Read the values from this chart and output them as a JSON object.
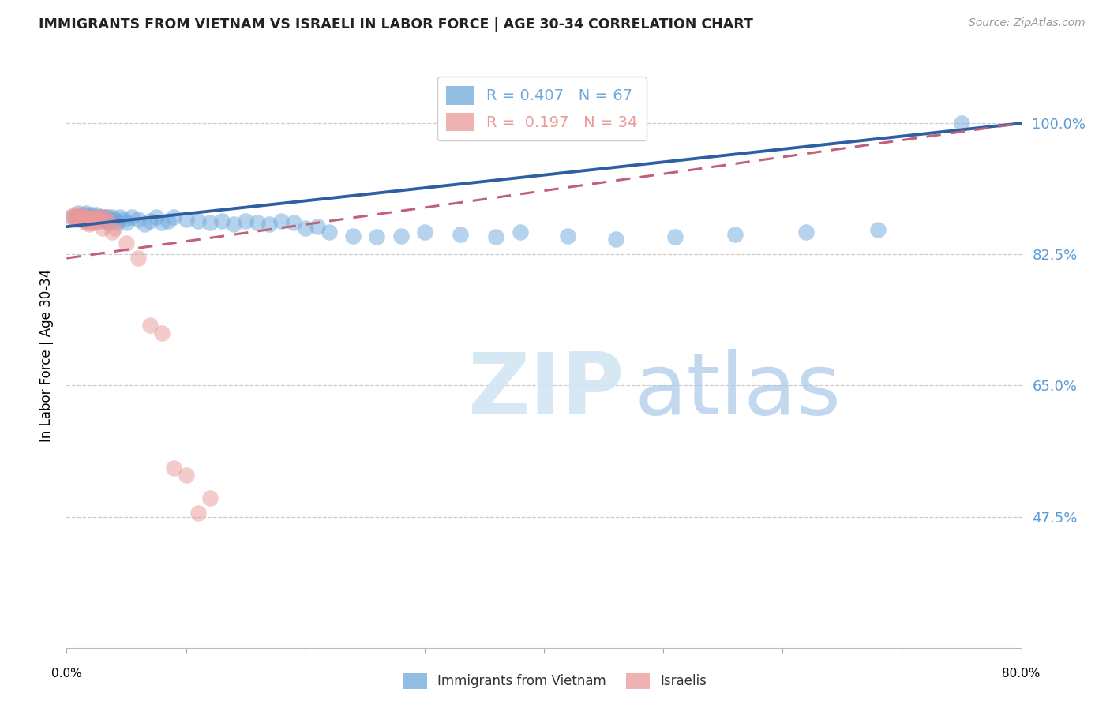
{
  "title": "IMMIGRANTS FROM VIETNAM VS ISRAELI IN LABOR FORCE | AGE 30-34 CORRELATION CHART",
  "source": "Source: ZipAtlas.com",
  "ylabel": "In Labor Force | Age 30-34",
  "ytick_labels": [
    "100.0%",
    "82.5%",
    "65.0%",
    "47.5%"
  ],
  "ytick_values": [
    1.0,
    0.825,
    0.65,
    0.475
  ],
  "xlim": [
    0.0,
    0.8
  ],
  "ylim": [
    0.3,
    1.08
  ],
  "legend_entries": [
    {
      "label": "R = 0.407   N = 67",
      "color": "#6fa8dc"
    },
    {
      "label": "R =  0.197   N = 34",
      "color": "#ea9999"
    }
  ],
  "blue_scatter_x": [
    0.005,
    0.008,
    0.01,
    0.012,
    0.013,
    0.015,
    0.016,
    0.017,
    0.018,
    0.019,
    0.02,
    0.021,
    0.022,
    0.023,
    0.024,
    0.025,
    0.026,
    0.027,
    0.028,
    0.03,
    0.031,
    0.032,
    0.033,
    0.034,
    0.035,
    0.036,
    0.038,
    0.04,
    0.042,
    0.045,
    0.048,
    0.05,
    0.055,
    0.06,
    0.065,
    0.07,
    0.075,
    0.08,
    0.085,
    0.09,
    0.1,
    0.11,
    0.12,
    0.13,
    0.14,
    0.15,
    0.16,
    0.17,
    0.18,
    0.19,
    0.2,
    0.21,
    0.22,
    0.24,
    0.26,
    0.28,
    0.3,
    0.33,
    0.36,
    0.38,
    0.42,
    0.46,
    0.51,
    0.56,
    0.62,
    0.68,
    0.75
  ],
  "blue_scatter_y": [
    0.875,
    0.875,
    0.88,
    0.875,
    0.875,
    0.878,
    0.88,
    0.875,
    0.875,
    0.872,
    0.875,
    0.878,
    0.875,
    0.872,
    0.875,
    0.878,
    0.875,
    0.87,
    0.875,
    0.875,
    0.872,
    0.875,
    0.87,
    0.868,
    0.875,
    0.872,
    0.875,
    0.872,
    0.868,
    0.875,
    0.872,
    0.868,
    0.875,
    0.872,
    0.865,
    0.87,
    0.875,
    0.868,
    0.87,
    0.875,
    0.872,
    0.87,
    0.868,
    0.87,
    0.865,
    0.87,
    0.868,
    0.865,
    0.87,
    0.868,
    0.86,
    0.862,
    0.855,
    0.85,
    0.848,
    0.85,
    0.855,
    0.852,
    0.848,
    0.855,
    0.85,
    0.845,
    0.848,
    0.852,
    0.855,
    0.858,
    1.0
  ],
  "pink_scatter_x": [
    0.004,
    0.006,
    0.008,
    0.01,
    0.011,
    0.012,
    0.013,
    0.014,
    0.015,
    0.016,
    0.017,
    0.018,
    0.019,
    0.02,
    0.021,
    0.022,
    0.023,
    0.024,
    0.025,
    0.026,
    0.028,
    0.03,
    0.032,
    0.035,
    0.038,
    0.04,
    0.05,
    0.06,
    0.07,
    0.08,
    0.09,
    0.1,
    0.11,
    0.12
  ],
  "pink_scatter_y": [
    0.875,
    0.878,
    0.872,
    0.875,
    0.878,
    0.872,
    0.875,
    0.87,
    0.875,
    0.868,
    0.875,
    0.87,
    0.865,
    0.872,
    0.868,
    0.87,
    0.875,
    0.868,
    0.875,
    0.872,
    0.875,
    0.86,
    0.875,
    0.87,
    0.855,
    0.86,
    0.84,
    0.82,
    0.73,
    0.72,
    0.54,
    0.53,
    0.48,
    0.5
  ],
  "blue_line_x": [
    0.0,
    0.8
  ],
  "blue_line_y": [
    0.862,
    1.0
  ],
  "pink_line_x": [
    0.0,
    0.8
  ],
  "pink_line_y": [
    0.82,
    1.0
  ],
  "blue_color": "#6fa8dc",
  "pink_color": "#ea9999",
  "blue_line_color": "#2e5fa3",
  "pink_line_color": "#c0607a",
  "pink_line_dash": [
    6,
    4
  ],
  "grid_color": "#cccccc",
  "axis_label_color": "#5b9bd5",
  "title_color": "#222222",
  "source_color": "#999999"
}
